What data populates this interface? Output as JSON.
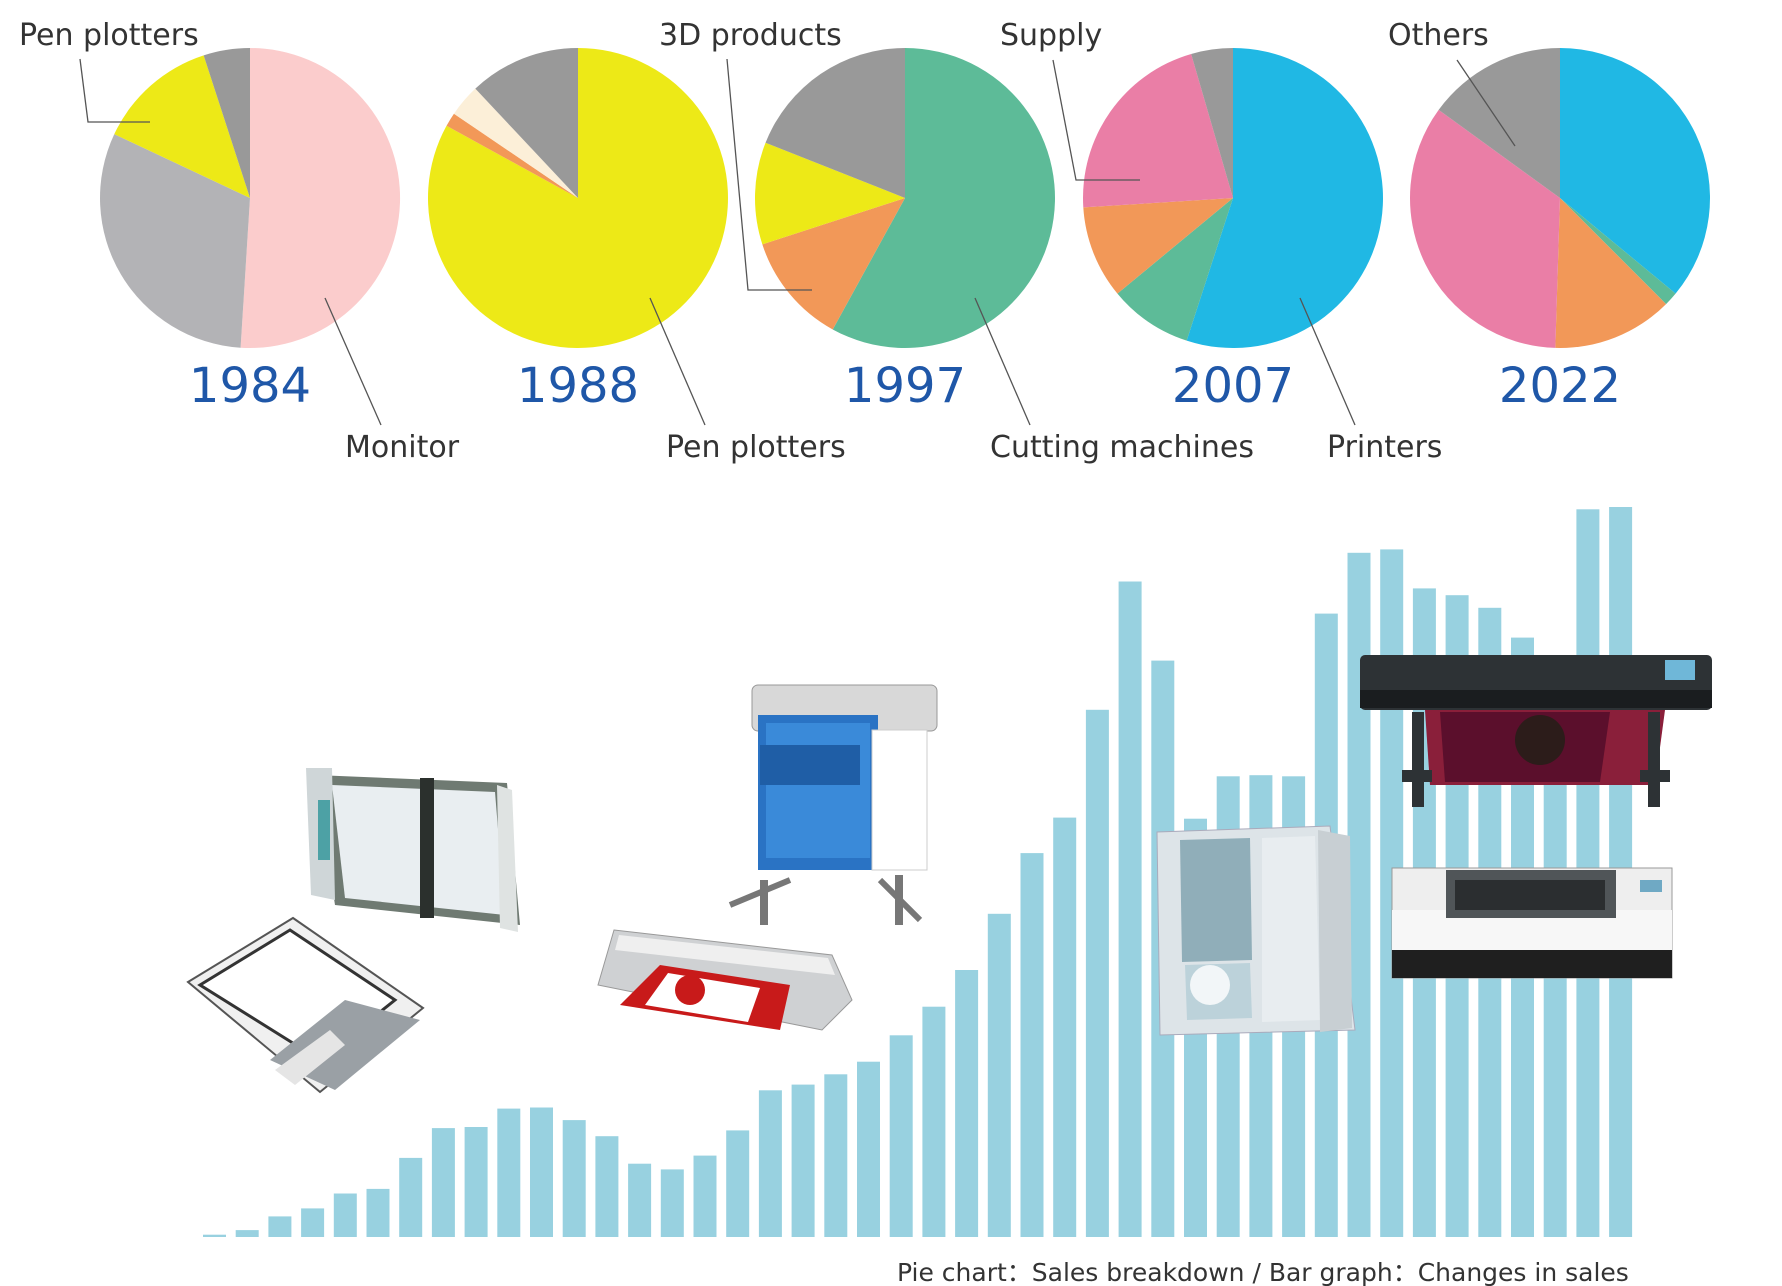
{
  "colors": {
    "monitor": "#fbcccc",
    "pen_plotters": "#ede917",
    "cutting_machines": "#5dbb98",
    "printers": "#20b8e4",
    "supply": "#ea7ea6",
    "3d_products": "#f29858",
    "others": "#999999",
    "other_1984": "#b3b3b6",
    "other_1988": "#fcefd8",
    "bars": "#98d1e0",
    "year_text": "#1f57a8"
  },
  "caption": "Pie chart：Sales breakdown / Bar graph：Changes in sales",
  "chart_data": [
    {
      "type": "pie",
      "title": "1984",
      "slices": [
        {
          "label": "Monitor",
          "value": 51,
          "color_key": "monitor"
        },
        {
          "label": "",
          "value": 31,
          "color_key": "other_1984"
        },
        {
          "label": "Pen plotters",
          "value": 13,
          "color_key": "pen_plotters"
        },
        {
          "label": "",
          "value": 5,
          "color_key": "others"
        }
      ]
    },
    {
      "type": "pie",
      "title": "1988",
      "slices": [
        {
          "label": "Pen plotters",
          "value": 83,
          "color_key": "pen_plotters"
        },
        {
          "label": "",
          "value": 1.5,
          "color_key": "3d_products"
        },
        {
          "label": "",
          "value": 3.5,
          "color_key": "other_1988"
        },
        {
          "label": "",
          "value": 12,
          "color_key": "others"
        }
      ]
    },
    {
      "type": "pie",
      "title": "1997",
      "slices": [
        {
          "label": "Cutting machines",
          "value": 58,
          "color_key": "cutting_machines"
        },
        {
          "label": "3D products",
          "value": 12,
          "color_key": "3d_products"
        },
        {
          "label": "Pen plotters",
          "value": 11,
          "color_key": "pen_plotters"
        },
        {
          "label": "",
          "value": 19,
          "color_key": "others"
        }
      ]
    },
    {
      "type": "pie",
      "title": "2007",
      "slices": [
        {
          "label": "Printers",
          "value": 55,
          "color_key": "printers"
        },
        {
          "label": "Cutting machines",
          "value": 9,
          "color_key": "cutting_machines"
        },
        {
          "label": "3D products",
          "value": 10,
          "color_key": "3d_products"
        },
        {
          "label": "Supply",
          "value": 21.5,
          "color_key": "supply"
        },
        {
          "label": "",
          "value": 4.5,
          "color_key": "others"
        }
      ]
    },
    {
      "type": "pie",
      "title": "2022",
      "slices": [
        {
          "label": "Printers",
          "value": 36,
          "color_key": "printers"
        },
        {
          "label": "Cutting machines",
          "value": 1.5,
          "color_key": "cutting_machines"
        },
        {
          "label": "3D products",
          "value": 13,
          "color_key": "3d_products"
        },
        {
          "label": "Supply",
          "value": 34.5,
          "color_key": "supply"
        },
        {
          "label": "Others",
          "value": 15,
          "color_key": "others"
        }
      ]
    },
    {
      "type": "bar",
      "values": [
        2,
        6,
        18,
        25,
        38,
        42,
        69,
        95,
        96,
        112,
        113,
        102,
        88,
        64,
        59,
        71,
        93,
        128,
        133,
        142,
        153,
        176,
        201,
        233,
        282,
        335,
        366,
        460,
        572,
        503,
        365,
        402,
        403,
        402,
        544,
        597,
        600,
        566,
        560,
        549,
        523,
        507,
        635,
        637
      ]
    }
  ],
  "legend_labels": {
    "pen_plotters_top": "Pen plotters",
    "3d_products": "3D products",
    "supply": "Supply",
    "others": "Others",
    "monitor": "Monitor",
    "pen_plotters_bottom": "Pen plotters",
    "cutting_machines": "Cutting machines",
    "printers": "Printers"
  },
  "product_images": [
    "pen-plotter-upright",
    "pen-plotter-flatbed",
    "vinyl-cutter-stand",
    "vinyl-cutter-desktop",
    "3d-milling-machine",
    "wide-format-printer",
    "uv-flatbed-printer"
  ]
}
